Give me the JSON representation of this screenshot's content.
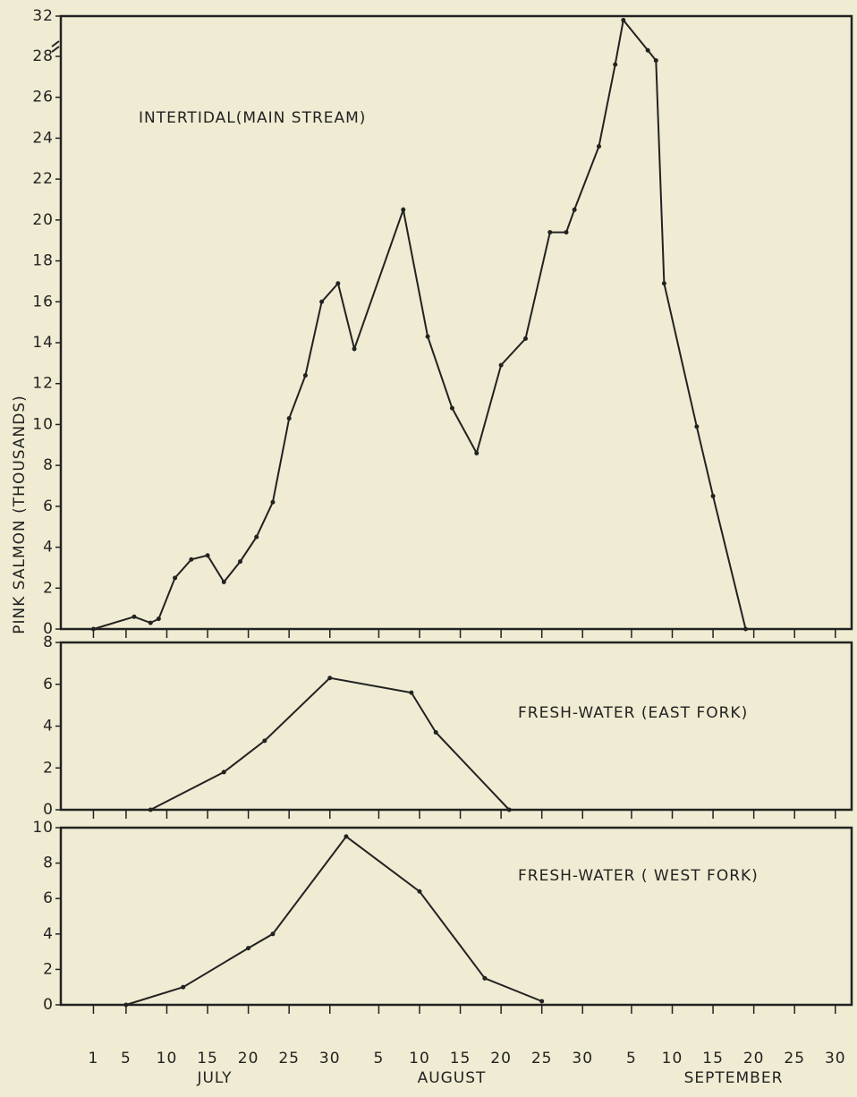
{
  "chart_data": [
    {
      "type": "line",
      "title": "INTERTIDAL(MAIN STREAM)",
      "ylabel": "PINK SALMON (THOUSANDS)",
      "x": [
        1,
        6,
        8,
        9,
        11,
        13,
        15,
        17,
        19,
        21,
        23,
        25,
        27,
        29,
        31,
        33,
        39,
        42,
        45,
        48,
        51,
        54,
        57,
        59,
        60,
        63,
        65,
        66,
        69,
        70,
        71,
        75,
        77,
        81
      ],
      "values": [
        0,
        0.6,
        0.3,
        0.5,
        2.5,
        3.4,
        3.6,
        2.3,
        3.3,
        4.5,
        6.2,
        10.3,
        12.4,
        16.0,
        16.9,
        13.7,
        20.5,
        14.3,
        10.8,
        8.6,
        12.9,
        14.2,
        19.4,
        19.4,
        20.5,
        23.6,
        27.6,
        31.6,
        28.6,
        27.8,
        16.9,
        9.9,
        6.5,
        0
      ],
      "color": "#222222",
      "xlim": [
        -3,
        94
      ],
      "ylim": [
        0,
        32
      ],
      "y_break": 28,
      "yticks": [
        0,
        2,
        4,
        6,
        8,
        10,
        12,
        14,
        16,
        18,
        20,
        22,
        24,
        26,
        28,
        32
      ]
    },
    {
      "type": "line",
      "title": "FRESH-WATER (EAST FORK)",
      "x": [
        8,
        17,
        22,
        30,
        40,
        43,
        52
      ],
      "values": [
        0,
        1.8,
        3.3,
        6.3,
        5.6,
        3.7,
        0
      ],
      "color": "#222222",
      "xlim": [
        -3,
        94
      ],
      "ylim": [
        0,
        8
      ],
      "yticks": [
        0,
        2,
        4,
        6,
        8
      ]
    },
    {
      "type": "line",
      "title": "FRESH-WATER ( WEST FORK)",
      "x": [
        5,
        12,
        20,
        23,
        32,
        41,
        49,
        56
      ],
      "values": [
        0,
        1.0,
        3.2,
        4.0,
        9.5,
        6.4,
        1.5,
        0.2
      ],
      "color": "#222222",
      "xlim": [
        -3,
        94
      ],
      "ylim": [
        0,
        10
      ],
      "yticks": [
        0,
        2,
        4,
        6,
        8,
        10
      ],
      "xticks": [
        1,
        5,
        10,
        15,
        20,
        25,
        30,
        {
          "value": 36,
          "label": "5"
        },
        {
          "value": 41,
          "label": "10"
        },
        {
          "value": 46,
          "label": "15"
        },
        {
          "value": 51,
          "label": "20"
        },
        {
          "value": 56,
          "label": "25"
        },
        {
          "value": 61,
          "label": "30"
        },
        {
          "value": 67,
          "label": "5"
        },
        {
          "value": 72,
          "label": "10"
        },
        {
          "value": 77,
          "label": "15"
        },
        {
          "value": 82,
          "label": "20"
        },
        {
          "value": 87,
          "label": "25"
        },
        {
          "value": 92,
          "label": "30"
        }
      ],
      "x_groups": [
        "JULY",
        "AUGUST",
        "SEPTEMBER"
      ]
    }
  ]
}
